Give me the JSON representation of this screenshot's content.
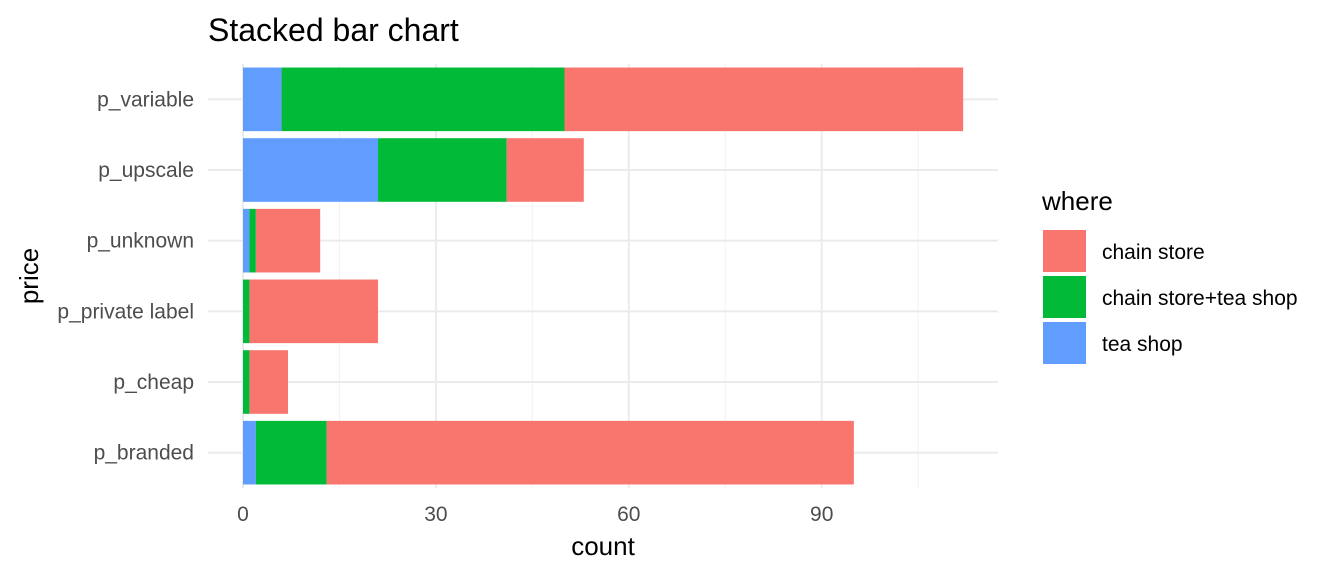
{
  "chart_data": {
    "type": "bar",
    "orientation": "horizontal",
    "stacked": true,
    "title": "Stacked bar chart",
    "xlabel": "count",
    "ylabel": "price",
    "xlim": [
      0,
      112
    ],
    "x_ticks": [
      0,
      30,
      60,
      90
    ],
    "categories": [
      "p_branded",
      "p_cheap",
      "p_private label",
      "p_unknown",
      "p_upscale",
      "p_variable"
    ],
    "series": [
      {
        "name": "tea shop",
        "color": "#619CFF",
        "values": [
          2,
          0,
          0,
          1,
          21,
          6
        ]
      },
      {
        "name": "chain store+tea shop",
        "color": "#00BA38",
        "values": [
          11,
          1,
          1,
          1,
          20,
          44
        ]
      },
      {
        "name": "chain store",
        "color": "#F8766D",
        "values": [
          82,
          6,
          20,
          10,
          12,
          62
        ]
      }
    ],
    "legend": {
      "title": "where",
      "position": "right",
      "entries": [
        "chain store",
        "chain store+tea shop",
        "tea shop"
      ]
    },
    "grid": true
  }
}
